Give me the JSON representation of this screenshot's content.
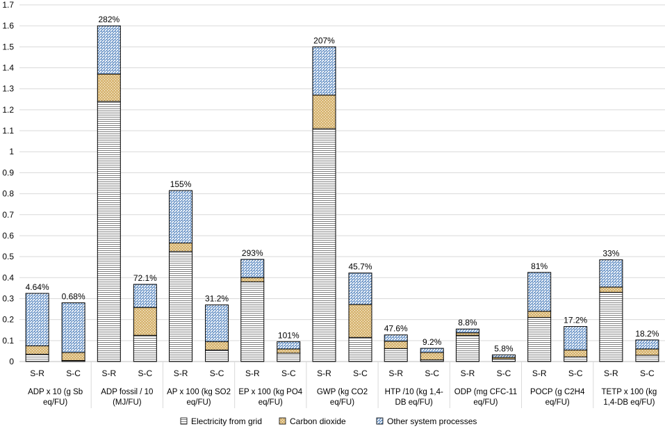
{
  "chart_data": {
    "type": "bar",
    "stacked": true,
    "title": "",
    "xlabel": "",
    "ylabel": "",
    "ylim": [
      0,
      1.7
    ],
    "ytick_step": 0.1,
    "yticks": [
      "0",
      "0.1",
      "0.2",
      "0.3",
      "0.4",
      "0.5",
      "0.6",
      "0.7",
      "0.8",
      "0.9",
      "1",
      "1.1",
      "1.2",
      "1.3",
      "1.4",
      "1.5",
      "1.6",
      "1.7"
    ],
    "grid": true,
    "legend_position": "bottom",
    "categories": [
      {
        "name": "ADP x 10 (g Sb eq/FU)",
        "lines": [
          "ADP x 10 (g Sb",
          "eq/FU)"
        ]
      },
      {
        "name": "ADP fossil / 10 (MJ/FU)",
        "lines": [
          "ADP fossil / 10",
          "(MJ/FU)"
        ]
      },
      {
        "name": "AP x 100 (kg SO2 eq/FU)",
        "lines": [
          "AP x 100 (kg SO2",
          "eq/FU)"
        ]
      },
      {
        "name": "EP x 100 (kg PO4 eq/FU)",
        "lines": [
          "EP x 100 (kg PO4",
          "eq/FU)"
        ]
      },
      {
        "name": "GWP (kg CO2 eq/FU)",
        "lines": [
          "GWP (kg CO2",
          "eq/FU)"
        ]
      },
      {
        "name": "HTP /10 (kg 1,4-DB eq/FU)",
        "lines": [
          "HTP /10 (kg 1,4-",
          "DB eq/FU)"
        ]
      },
      {
        "name": "ODP (mg CFC-11 eq/FU)",
        "lines": [
          "ODP (mg CFC-11",
          "eq/FU)"
        ]
      },
      {
        "name": "POCP (g C2H4 eq/FU)",
        "lines": [
          "POCP (g C2H4",
          "eq/FU)"
        ]
      },
      {
        "name": "TETP x 100 (kg 1,4-DB eq/FU)",
        "lines": [
          "TETP x 100 (kg",
          "1,4-DB eq/FU)"
        ]
      }
    ],
    "bars": [
      {
        "category": 0,
        "label": "S-R",
        "values": [
          0.035,
          0.04,
          0.25
        ],
        "annotation": "4.64%"
      },
      {
        "category": 0,
        "label": "S-C",
        "values": [
          0.005,
          0.038,
          0.237
        ],
        "annotation": "0.68%"
      },
      {
        "category": 1,
        "label": "S-R",
        "values": [
          1.24,
          0.13,
          0.23
        ],
        "annotation": "282%"
      },
      {
        "category": 1,
        "label": "S-C",
        "values": [
          0.125,
          0.133,
          0.11
        ],
        "annotation": "72.1%"
      },
      {
        "category": 2,
        "label": "S-R",
        "values": [
          0.525,
          0.04,
          0.25
        ],
        "annotation": "155%"
      },
      {
        "category": 2,
        "label": "S-C",
        "values": [
          0.055,
          0.04,
          0.175
        ],
        "annotation": "31.2%"
      },
      {
        "category": 3,
        "label": "S-R",
        "values": [
          0.38,
          0.02,
          0.087
        ],
        "annotation": "293%"
      },
      {
        "category": 3,
        "label": "S-C",
        "values": [
          0.04,
          0.02,
          0.035
        ],
        "annotation": "101%"
      },
      {
        "category": 4,
        "label": "S-R",
        "values": [
          1.11,
          0.16,
          0.23
        ],
        "annotation": "207%"
      },
      {
        "category": 4,
        "label": "S-C",
        "values": [
          0.115,
          0.157,
          0.15
        ],
        "annotation": "45.7%"
      },
      {
        "category": 5,
        "label": "S-R",
        "values": [
          0.062,
          0.035,
          0.03
        ],
        "annotation": "47.6%"
      },
      {
        "category": 5,
        "label": "S-C",
        "values": [
          0.008,
          0.035,
          0.02
        ],
        "annotation": "9.2%"
      },
      {
        "category": 6,
        "label": "S-R",
        "values": [
          0.125,
          0.012,
          0.018
        ],
        "annotation": "8.8%"
      },
      {
        "category": 6,
        "label": "S-C",
        "values": [
          0.012,
          0.008,
          0.012
        ],
        "annotation": "5.8%"
      },
      {
        "category": 7,
        "label": "S-R",
        "values": [
          0.21,
          0.03,
          0.185
        ],
        "annotation": "81%"
      },
      {
        "category": 7,
        "label": "S-C",
        "values": [
          0.022,
          0.033,
          0.112
        ],
        "annotation": "17.2%"
      },
      {
        "category": 8,
        "label": "S-R",
        "values": [
          0.33,
          0.025,
          0.13
        ],
        "annotation": "33%"
      },
      {
        "category": 8,
        "label": "S-C",
        "values": [
          0.03,
          0.03,
          0.043
        ],
        "annotation": "18.2%"
      }
    ],
    "series": [
      {
        "name": "Electricity from grid",
        "pattern": "horizontal-lines",
        "color": "#7f7f7f"
      },
      {
        "name": "Carbon dioxide",
        "pattern": "dots",
        "color": "#c9a25a"
      },
      {
        "name": "Other system processes",
        "pattern": "weave",
        "color": "#4f81bd"
      }
    ]
  }
}
